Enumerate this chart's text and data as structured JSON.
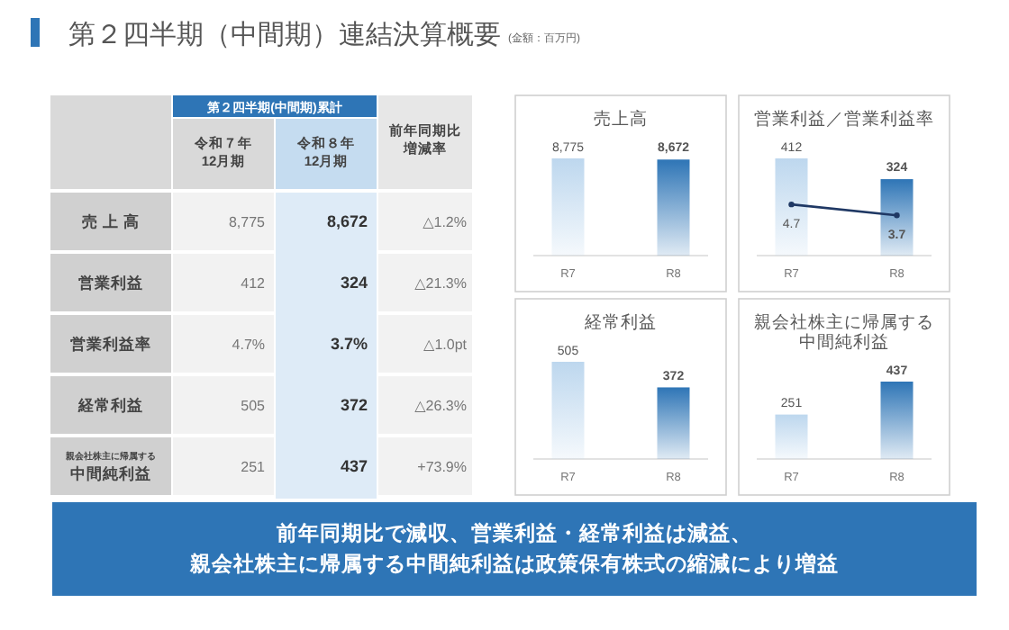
{
  "chart_data": [
    {
      "type": "other",
      "title": "第２四半期（中間期）連結決算概要",
      "subtitle": "(金額：百万円)",
      "annotations": [
        "第２四半期(中間期)累計",
        "令和７年12月期",
        "令和８年12月期",
        "前年同期比増減率",
        "売 上 高",
        "8,775",
        "8,672",
        "△1.2%",
        "営業利益",
        "412",
        "324",
        "△21.3%",
        "営業利益率",
        "4.7%",
        "3.7%",
        "△1.0pt",
        "経常利益",
        "505",
        "372",
        "△26.3%",
        "中間純利益",
        "251",
        "437",
        "+73.9%",
        "親会社株主に帰属する"
      ]
    },
    {
      "type": "bar",
      "title": "売上高",
      "categories": [
        "R7",
        "R8"
      ],
      "values": [
        8775,
        8672
      ],
      "value_labels": [
        "8,775",
        "8,672"
      ],
      "colors": [
        "#bdd7ee",
        "#2e75b6"
      ]
    },
    {
      "type": "bar",
      "title": "営業利益／営業利益率",
      "categories": [
        "R7",
        "R8"
      ],
      "data_labels": true,
      "series": [
        {
          "type": "bar",
          "values": [
            412,
            324
          ],
          "colors": [
            "#bdd7ee",
            "#2e75b6"
          ]
        },
        {
          "type": "line",
          "axis": "y2",
          "values": [
            4.7,
            3.7
          ],
          "color": "#1f3864",
          "marker": "circle"
        }
      ]
    },
    {
      "type": "bar",
      "title": "経常利益",
      "categories": [
        "R7",
        "R8"
      ],
      "values": [
        505,
        372
      ],
      "colors": [
        "#bdd7ee",
        "#2e75b6"
      ],
      "data_labels": true
    },
    {
      "type": "bar",
      "title": "親会社株主に帰属する中間純利益",
      "categories": [
        "R7",
        "R8"
      ],
      "values": [
        251,
        437
      ],
      "colors": [
        "#bdd7ee",
        "#2e75b6"
      ],
      "data_labels": true
    },
    {
      "type": "other",
      "annotations": [
        "前年同期比で減収、営業利益・経常利益は減益、",
        "親会社株主に帰属する中間純利益は政策保有株式の縮減により増益"
      ]
    }
  ]
}
